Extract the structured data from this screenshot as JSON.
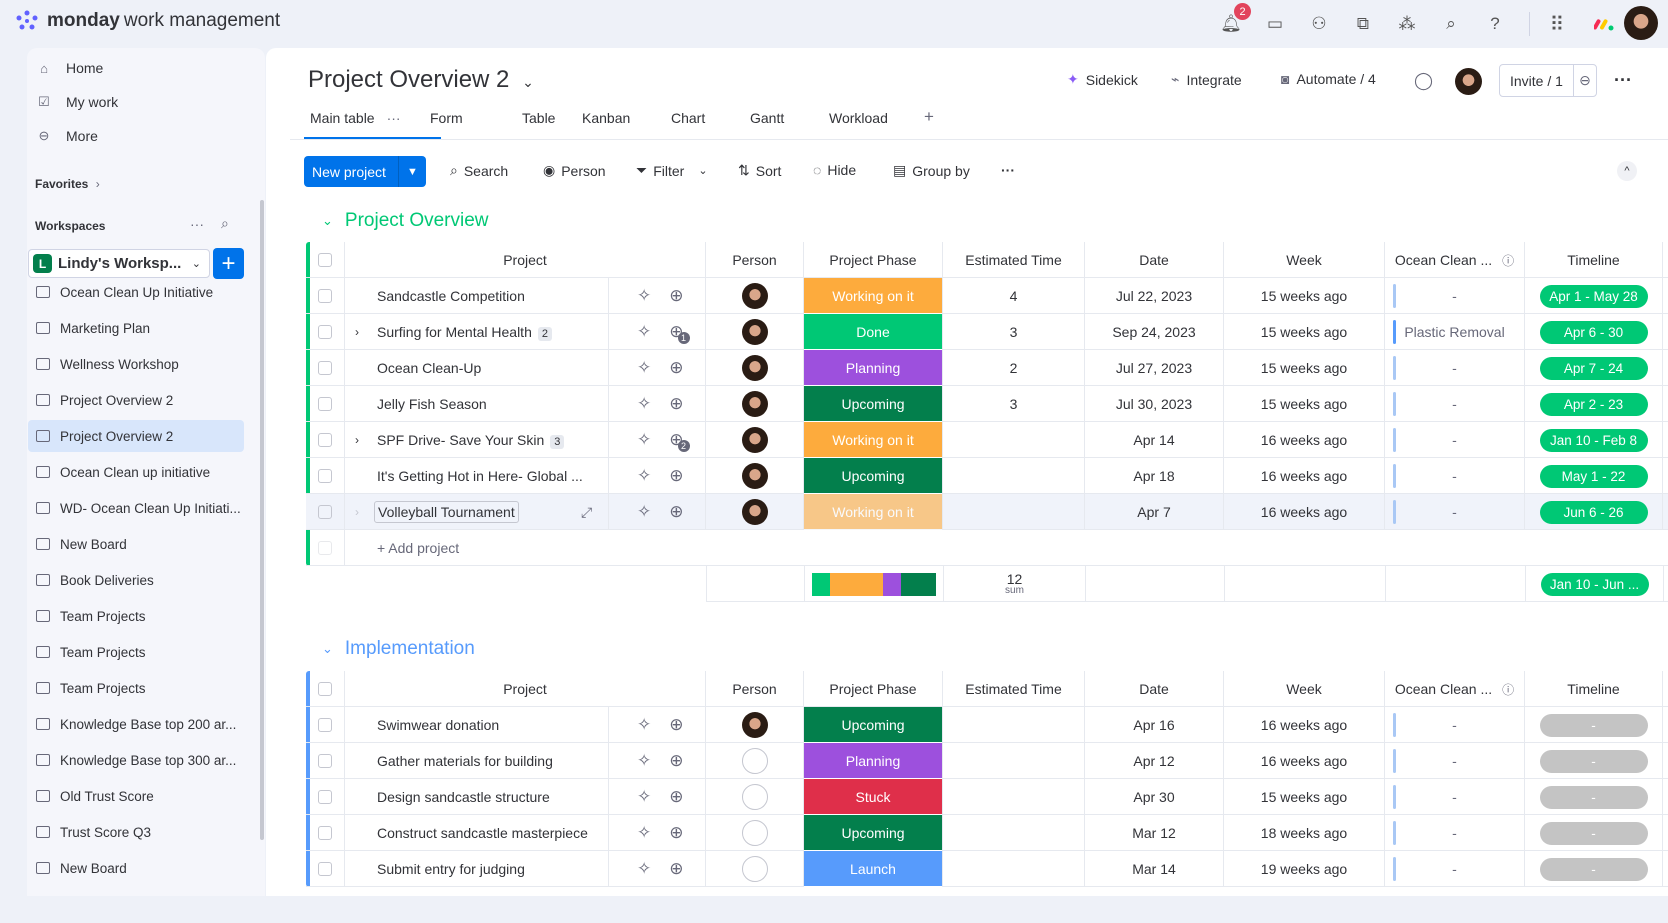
{
  "app": {
    "brand_bold": "monday",
    "brand_light": "work management",
    "notifications_count": "2"
  },
  "topbar_icons": [
    "bell-icon",
    "inbox-icon",
    "invite-member-icon",
    "apps-icon",
    "network-icon",
    "search-icon",
    "help-icon",
    "grid-menu-icon"
  ],
  "sidebar": {
    "nav": [
      {
        "label": "Home",
        "icon": "home-icon"
      },
      {
        "label": "My work",
        "icon": "calendar-check-icon"
      },
      {
        "label": "More",
        "icon": "more-circle-icon"
      }
    ],
    "favorites": "Favorites",
    "workspaces": "Workspaces",
    "workspace_letter": "L",
    "workspace_name": "Lindy's Worksp...",
    "items": [
      {
        "label": "Ocean Clean Up Initiative",
        "icon": "board-icon"
      },
      {
        "label": "Marketing Plan",
        "icon": "board-icon"
      },
      {
        "label": "Wellness Workshop",
        "icon": "board-icon"
      },
      {
        "label": "Project Overview 2",
        "icon": "dashboard-icon"
      },
      {
        "label": "Project Overview 2",
        "icon": "board-icon",
        "selected": true
      },
      {
        "label": "Ocean Clean up initiative",
        "icon": "workflow-doc-icon"
      },
      {
        "label": "WD- Ocean Clean Up Initiati...",
        "icon": "doc-icon"
      },
      {
        "label": "New Board",
        "icon": "board-icon"
      },
      {
        "label": "Book Deliveries",
        "icon": "board-icon"
      },
      {
        "label": "Team Projects",
        "icon": "board-icon"
      },
      {
        "label": "Team Projects",
        "icon": "dashboard-icon"
      },
      {
        "label": "Team Projects",
        "icon": "doc-icon"
      },
      {
        "label": "Knowledge Base top 200 ar...",
        "icon": "board-icon"
      },
      {
        "label": "Knowledge Base top 300 ar...",
        "icon": "board-icon"
      },
      {
        "label": "Old Trust Score",
        "icon": "doc-icon"
      },
      {
        "label": "Trust Score Q3",
        "icon": "network-icon"
      },
      {
        "label": "New Board",
        "icon": "board-icon"
      }
    ]
  },
  "header": {
    "title": "Project Overview 2",
    "sidekick": "Sidekick",
    "integrate": "Integrate",
    "automate": "Automate / 4",
    "invite": "Invite / 1"
  },
  "tabs": [
    "Main table",
    "Form",
    "Table",
    "Kanban",
    "Chart",
    "Gantt",
    "Workload"
  ],
  "active_tab": "Main table",
  "toolbar": {
    "new_project": "New project",
    "search": "Search",
    "person": "Person",
    "filter": "Filter",
    "sort": "Sort",
    "hide": "Hide",
    "group_by": "Group by"
  },
  "columns": [
    "Project",
    "Person",
    "Project Phase",
    "Estimated Time",
    "Date",
    "Week",
    "Ocean Clean ...",
    "Timeline"
  ],
  "status_colors": {
    "Working on it": "#fdab3d",
    "Done": "#00c875",
    "Planning": "#9d50dd",
    "Upcoming": "#037f4c",
    "Stuck": "#df2f4a",
    "Launch": "#579bfc"
  },
  "groups": [
    {
      "title": "Project Overview",
      "color": "#00c875",
      "rows": [
        {
          "name": "Sandcastle Competition",
          "subitems": "",
          "phase": "Working on it",
          "est": "4",
          "date": "Jul 22, 2023",
          "week": "15 weeks ago",
          "ocean": "-",
          "timeline": "Apr 1 - May 28",
          "person": true
        },
        {
          "name": "Surfing for Mental Health",
          "subitems": "2",
          "updates": "1",
          "phase": "Done",
          "est": "3",
          "date": "Sep 24, 2023",
          "week": "15 weeks ago",
          "ocean": "Plastic Removal",
          "timeline": "Apr 6 - 30",
          "person": true
        },
        {
          "name": "Ocean Clean-Up",
          "subitems": "",
          "phase": "Planning",
          "est": "2",
          "date": "Jul 27, 2023",
          "week": "15 weeks ago",
          "ocean": "-",
          "timeline": "Apr 7 - 24",
          "person": true
        },
        {
          "name": "Jelly Fish Season",
          "subitems": "",
          "phase": "Upcoming",
          "est": "3",
          "date": "Jul 30, 2023",
          "week": "15 weeks ago",
          "ocean": "-",
          "timeline": "Apr 2 - 23",
          "person": true
        },
        {
          "name": "SPF Drive- Save Your Skin",
          "subitems": "3",
          "updates": "2",
          "phase": "Working on it",
          "est": "",
          "date": "Apr 14",
          "week": "16 weeks ago",
          "ocean": "-",
          "timeline": "Jan 10 - Feb 8",
          "person": true
        },
        {
          "name": "It's Getting Hot in Here- Global ...",
          "subitems": "",
          "phase": "Upcoming",
          "est": "",
          "date": "Apr 18",
          "week": "16 weeks ago",
          "ocean": "-",
          "timeline": "May 1 - 22",
          "person": true
        },
        {
          "name": "Volleyball Tournament",
          "subitems": "",
          "phase": "Working on it",
          "est": "",
          "date": "Apr 7",
          "week": "16 weeks ago",
          "ocean": "-",
          "timeline": "Jun 6 - 26",
          "person": true,
          "hover": true
        }
      ],
      "add_label": "+ Add project",
      "summary": {
        "est_sum": "12",
        "est_label": "sum",
        "timeline": "Jan 10 - Jun ..."
      }
    },
    {
      "title": "Implementation",
      "color": "#579bfc",
      "rows": [
        {
          "name": "Swimwear donation",
          "phase": "Upcoming",
          "date": "Apr 16",
          "week": "16 weeks ago",
          "ocean": "-",
          "timeline": "-",
          "person": true
        },
        {
          "name": "Gather materials for building",
          "phase": "Planning",
          "date": "Apr 12",
          "week": "16 weeks ago",
          "ocean": "-",
          "timeline": "-",
          "person": false
        },
        {
          "name": "Design sandcastle structure",
          "phase": "Stuck",
          "date": "Apr 30",
          "week": "15 weeks ago",
          "ocean": "-",
          "timeline": "-",
          "person": false
        },
        {
          "name": "Construct sandcastle masterpiece",
          "phase": "Upcoming",
          "date": "Mar 12",
          "week": "18 weeks ago",
          "ocean": "-",
          "timeline": "-",
          "person": false
        },
        {
          "name": "Submit entry for judging",
          "phase": "Launch",
          "date": "Mar 14",
          "week": "19 weeks ago",
          "ocean": "-",
          "timeline": "-",
          "person": false
        }
      ]
    }
  ]
}
